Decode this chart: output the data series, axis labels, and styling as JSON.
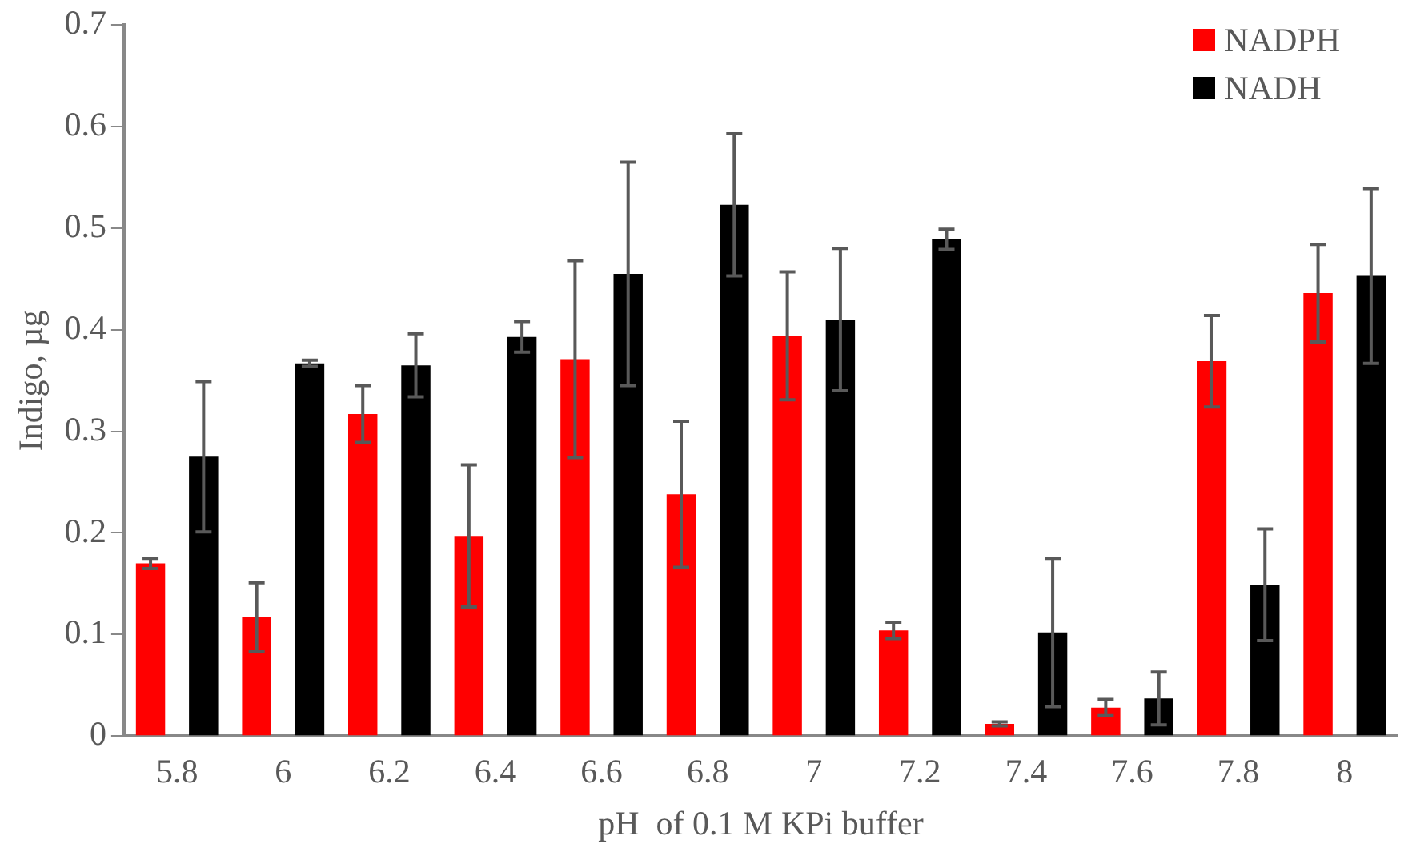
{
  "chart_data": {
    "type": "bar",
    "xlabel": "pH  of 0.1 M KPi buffer",
    "ylabel": "Indigo, µg",
    "categories": [
      "5.8",
      "6",
      "6.2",
      "6.4",
      "6.6",
      "6.8",
      "7",
      "7.2",
      "7.4",
      "7.6",
      "7.8",
      "8"
    ],
    "series": [
      {
        "name": "NADPH",
        "color": "#ff0000",
        "values": [
          0.17,
          0.117,
          0.317,
          0.197,
          0.371,
          0.238,
          0.394,
          0.104,
          0.012,
          0.028,
          0.369,
          0.436
        ],
        "errors": [
          0.005,
          0.034,
          0.028,
          0.07,
          0.097,
          0.072,
          0.063,
          0.008,
          0.002,
          0.008,
          0.045,
          0.048
        ]
      },
      {
        "name": "NADH",
        "color": "#000000",
        "values": [
          0.275,
          0.367,
          0.365,
          0.393,
          0.455,
          0.523,
          0.41,
          0.489,
          0.102,
          0.037,
          0.149,
          0.453
        ],
        "errors": [
          0.074,
          0.003,
          0.031,
          0.015,
          0.11,
          0.07,
          0.07,
          0.01,
          0.073,
          0.026,
          0.055,
          0.086
        ]
      }
    ],
    "ylim": [
      0,
      0.7
    ],
    "yticks": [
      0,
      0.1,
      0.2,
      0.3,
      0.4,
      0.5,
      0.6,
      0.7
    ],
    "grid": false,
    "legend": "top right"
  }
}
